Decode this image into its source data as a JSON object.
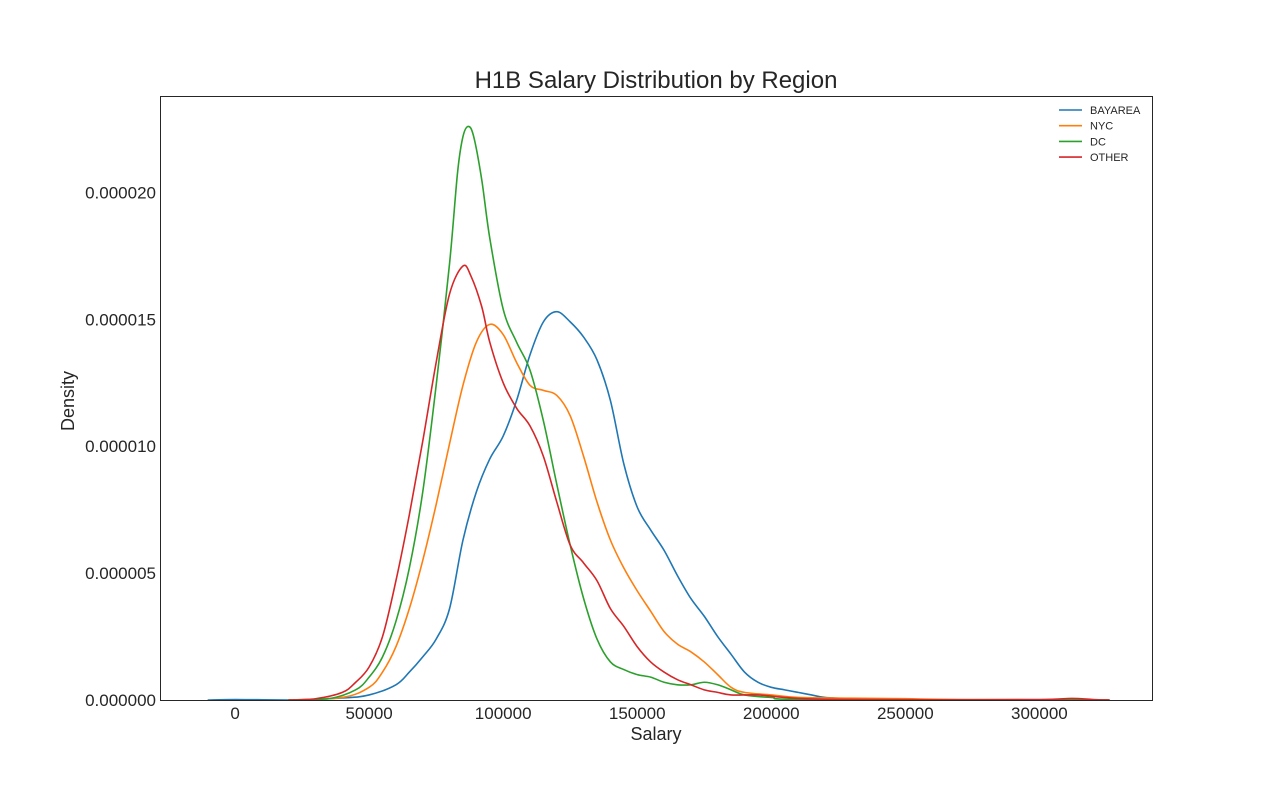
{
  "chart_data": {
    "type": "line",
    "title": "H1B Salary Distribution by Region",
    "xlabel": "Salary",
    "ylabel": "Density",
    "xlim": [
      -28000,
      342000
    ],
    "ylim": [
      0,
      2.38e-05
    ],
    "xticks": [
      0,
      50000,
      100000,
      150000,
      200000,
      250000,
      300000
    ],
    "xtick_labels": [
      "0",
      "50000",
      "100000",
      "150000",
      "200000",
      "250000",
      "300000"
    ],
    "yticks": [
      0,
      5e-06,
      1e-05,
      1.5e-05,
      2e-05
    ],
    "ytick_labels": [
      "0.000000",
      "0.000005",
      "0.000010",
      "0.000015",
      "0.000020"
    ],
    "grid": false,
    "legend_position": "top-right",
    "series": [
      {
        "name": "BAYAREA",
        "color": "#1f77b4",
        "points": [
          [
            -10000,
            0
          ],
          [
            0,
            2e-08
          ],
          [
            20000,
            0
          ],
          [
            40000,
            8e-08
          ],
          [
            50000,
            2e-07
          ],
          [
            60000,
            6e-07
          ],
          [
            65000,
            1.1e-06
          ],
          [
            70000,
            1.7e-06
          ],
          [
            75000,
            2.4e-06
          ],
          [
            80000,
            3.6e-06
          ],
          [
            85000,
            6.3e-06
          ],
          [
            90000,
            8.2e-06
          ],
          [
            95000,
            9.5e-06
          ],
          [
            100000,
            1.04e-05
          ],
          [
            105000,
            1.18e-05
          ],
          [
            110000,
            1.36e-05
          ],
          [
            115000,
            1.49e-05
          ],
          [
            120000,
            1.53e-05
          ],
          [
            125000,
            1.49e-05
          ],
          [
            130000,
            1.43e-05
          ],
          [
            135000,
            1.34e-05
          ],
          [
            140000,
            1.18e-05
          ],
          [
            145000,
            9.3e-06
          ],
          [
            150000,
            7.6e-06
          ],
          [
            155000,
            6.7e-06
          ],
          [
            160000,
            5.9e-06
          ],
          [
            165000,
            4.9e-06
          ],
          [
            170000,
            4e-06
          ],
          [
            175000,
            3.3e-06
          ],
          [
            180000,
            2.5e-06
          ],
          [
            185000,
            1.8e-06
          ],
          [
            190000,
            1.1e-06
          ],
          [
            195000,
            7e-07
          ],
          [
            200000,
            5e-07
          ],
          [
            205000,
            4e-07
          ],
          [
            210000,
            3e-07
          ],
          [
            215000,
            2e-07
          ],
          [
            220000,
            1e-07
          ],
          [
            230000,
            5e-08
          ],
          [
            250000,
            2e-08
          ],
          [
            326000,
            0
          ]
        ]
      },
      {
        "name": "NYC",
        "color": "#ff7f0e",
        "points": [
          [
            20000,
            0
          ],
          [
            40000,
            1e-07
          ],
          [
            50000,
            5e-07
          ],
          [
            55000,
            1.1e-06
          ],
          [
            60000,
            2.1e-06
          ],
          [
            65000,
            3.6e-06
          ],
          [
            70000,
            5.5e-06
          ],
          [
            75000,
            7.7e-06
          ],
          [
            80000,
            1.01e-05
          ],
          [
            85000,
            1.24e-05
          ],
          [
            90000,
            1.41e-05
          ],
          [
            95000,
            1.48e-05
          ],
          [
            100000,
            1.44e-05
          ],
          [
            105000,
            1.33e-05
          ],
          [
            110000,
            1.24e-05
          ],
          [
            115000,
            1.22e-05
          ],
          [
            120000,
            1.2e-05
          ],
          [
            125000,
            1.12e-05
          ],
          [
            130000,
            9.6e-06
          ],
          [
            135000,
            7.8e-06
          ],
          [
            140000,
            6.3e-06
          ],
          [
            145000,
            5.2e-06
          ],
          [
            150000,
            4.3e-06
          ],
          [
            155000,
            3.5e-06
          ],
          [
            160000,
            2.7e-06
          ],
          [
            165000,
            2.2e-06
          ],
          [
            170000,
            1.9e-06
          ],
          [
            175000,
            1.5e-06
          ],
          [
            180000,
            1e-06
          ],
          [
            185000,
            5e-07
          ],
          [
            190000,
            3e-07
          ],
          [
            200000,
            2e-07
          ],
          [
            210000,
            1e-07
          ],
          [
            230000,
            7e-08
          ],
          [
            250000,
            5e-08
          ],
          [
            270000,
            2e-08
          ],
          [
            326000,
            0
          ]
        ]
      },
      {
        "name": "DC",
        "color": "#2ca02c",
        "points": [
          [
            20000,
            0
          ],
          [
            35000,
            5e-08
          ],
          [
            45000,
            4e-07
          ],
          [
            50000,
            9e-07
          ],
          [
            55000,
            1.7e-06
          ],
          [
            60000,
            3.1e-06
          ],
          [
            65000,
            5.2e-06
          ],
          [
            70000,
            8.2e-06
          ],
          [
            75000,
            1.24e-05
          ],
          [
            80000,
            1.72e-05
          ],
          [
            83000,
            2.08e-05
          ],
          [
            85000,
            2.22e-05
          ],
          [
            87000,
            2.26e-05
          ],
          [
            89000,
            2.22e-05
          ],
          [
            92000,
            2.05e-05
          ],
          [
            95000,
            1.82e-05
          ],
          [
            100000,
            1.54e-05
          ],
          [
            105000,
            1.41e-05
          ],
          [
            110000,
            1.3e-05
          ],
          [
            115000,
            1.1e-05
          ],
          [
            120000,
            8.5e-06
          ],
          [
            125000,
            6.1e-06
          ],
          [
            130000,
            4e-06
          ],
          [
            135000,
            2.4e-06
          ],
          [
            140000,
            1.5e-06
          ],
          [
            145000,
            1.2e-06
          ],
          [
            150000,
            1e-06
          ],
          [
            155000,
            9e-07
          ],
          [
            160000,
            7e-07
          ],
          [
            165000,
            6e-07
          ],
          [
            170000,
            6e-07
          ],
          [
            175000,
            7e-07
          ],
          [
            180000,
            6e-07
          ],
          [
            185000,
            4e-07
          ],
          [
            190000,
            2e-07
          ],
          [
            200000,
            1e-07
          ],
          [
            215000,
            2e-08
          ],
          [
            326000,
            0
          ]
        ]
      },
      {
        "name": "OTHER",
        "color": "#d62728",
        "points": [
          [
            20000,
            0
          ],
          [
            30000,
            5e-08
          ],
          [
            40000,
            3e-07
          ],
          [
            45000,
            7e-07
          ],
          [
            50000,
            1.3e-06
          ],
          [
            55000,
            2.5e-06
          ],
          [
            60000,
            4.7e-06
          ],
          [
            65000,
            7.3e-06
          ],
          [
            70000,
            1.02e-05
          ],
          [
            75000,
            1.33e-05
          ],
          [
            80000,
            1.6e-05
          ],
          [
            85000,
            1.71e-05
          ],
          [
            88000,
            1.67e-05
          ],
          [
            92000,
            1.55e-05
          ],
          [
            95000,
            1.41e-05
          ],
          [
            100000,
            1.25e-05
          ],
          [
            105000,
            1.15e-05
          ],
          [
            110000,
            1.08e-05
          ],
          [
            115000,
            9.6e-06
          ],
          [
            120000,
            7.8e-06
          ],
          [
            125000,
            6.1e-06
          ],
          [
            130000,
            5.4e-06
          ],
          [
            135000,
            4.7e-06
          ],
          [
            140000,
            3.6e-06
          ],
          [
            145000,
            2.9e-06
          ],
          [
            150000,
            2.1e-06
          ],
          [
            155000,
            1.5e-06
          ],
          [
            160000,
            1.1e-06
          ],
          [
            165000,
            8e-07
          ],
          [
            170000,
            6e-07
          ],
          [
            175000,
            4e-07
          ],
          [
            180000,
            3e-07
          ],
          [
            185000,
            2e-07
          ],
          [
            195000,
            2e-07
          ],
          [
            205000,
            1e-07
          ],
          [
            220000,
            3e-08
          ],
          [
            260000,
            1e-08
          ],
          [
            300000,
            2e-08
          ],
          [
            312000,
            6e-08
          ],
          [
            320000,
            2e-08
          ],
          [
            326000,
            0
          ]
        ]
      }
    ]
  }
}
